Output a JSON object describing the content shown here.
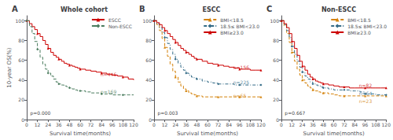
{
  "chart_data": [
    {
      "type": "step",
      "title": "Whole cohort",
      "panel_label": "A",
      "xlabel": "Survival time(months)",
      "ylabel": "10-year OS(%)",
      "x": [
        0,
        3,
        6,
        9,
        12,
        15,
        18,
        21,
        24,
        27,
        30,
        33,
        36,
        39,
        42,
        45,
        48,
        51,
        54,
        57,
        60,
        66,
        72,
        78,
        84,
        90,
        96,
        102,
        108,
        114,
        120
      ],
      "series": [
        {
          "name": "ESCC",
          "color": "#cc0000",
          "line_style": "solid",
          "marker": "triangle",
          "values": [
            100,
            97,
            94,
            91,
            87,
            84,
            80,
            76,
            72,
            68,
            65,
            63,
            61,
            59,
            57,
            56,
            55,
            54,
            53,
            52,
            51,
            50,
            49,
            48,
            47,
            46,
            45,
            44,
            43,
            41,
            40
          ]
        },
        {
          "name": "Non-ESCC",
          "color": "#4a7c5e",
          "line_style": "dashed",
          "marker": "diamond",
          "values": [
            100,
            94,
            87,
            79,
            71,
            63,
            56,
            51,
            47,
            44,
            41,
            38,
            36,
            35,
            34,
            33,
            32,
            31,
            30,
            29,
            29,
            28,
            27,
            27,
            26,
            26,
            25,
            25,
            25,
            25,
            25
          ]
        }
      ],
      "annotations": [
        {
          "text": "n=446",
          "x": 82,
          "y": 46,
          "color": "#cc0000"
        },
        {
          "text": "n=169",
          "x": 82,
          "y": 28,
          "color": "#4a7c5e"
        },
        {
          "text": "p=0.000",
          "x": 3,
          "y": 7,
          "color": "#000000"
        }
      ],
      "xlim": [
        0,
        120
      ],
      "xticks": [
        0,
        12,
        24,
        36,
        48,
        60,
        72,
        84,
        96,
        108,
        120
      ],
      "ylim": [
        0,
        105
      ],
      "yticks": [
        0,
        20,
        40,
        60,
        80,
        100
      ],
      "grid": false,
      "legend": "upper right"
    },
    {
      "type": "step",
      "title": "ESCC",
      "panel_label": "B",
      "xlabel": "Survival time(months)",
      "x": [
        0,
        3,
        6,
        9,
        12,
        15,
        18,
        21,
        24,
        27,
        30,
        33,
        36,
        39,
        42,
        45,
        48,
        54,
        60,
        66,
        72,
        78,
        84,
        90,
        96,
        102,
        108,
        114,
        120
      ],
      "series": [
        {
          "name": "BMI<18.5",
          "color": "#d4820a",
          "line_style": "dashed",
          "marker": "triangle",
          "values": [
            100,
            96,
            90,
            82,
            73,
            64,
            56,
            49,
            43,
            38,
            34,
            31,
            29,
            27,
            26,
            25,
            24,
            23,
            23,
            23,
            23,
            23,
            23,
            23,
            23,
            23,
            23,
            23,
            23
          ]
        },
        {
          "name": "18.5≤ BMI<23.0",
          "color": "#336b87",
          "line_style": "dashdot",
          "marker": "diamond",
          "values": [
            100,
            97,
            93,
            88,
            83,
            77,
            71,
            66,
            61,
            57,
            53,
            50,
            47,
            45,
            43,
            42,
            41,
            39,
            38,
            37,
            36,
            36,
            36,
            35,
            35,
            35,
            35,
            35,
            35
          ]
        },
        {
          "name": "BMI≥23.0",
          "color": "#cc0000",
          "line_style": "solid",
          "marker": "triangle",
          "values": [
            100,
            98,
            96,
            93,
            90,
            87,
            84,
            81,
            78,
            75,
            72,
            70,
            68,
            66,
            64,
            62,
            61,
            59,
            57,
            56,
            55,
            54,
            53,
            52,
            51,
            51,
            50,
            50,
            50
          ]
        }
      ],
      "annotations": [
        {
          "text": "n=156",
          "x": 88,
          "y": 53,
          "color": "#cc0000"
        },
        {
          "text": "n=225",
          "x": 88,
          "y": 38,
          "color": "#336b87"
        },
        {
          "text": "n=65",
          "x": 88,
          "y": 24,
          "color": "#d4820a"
        },
        {
          "text": "p=0.003",
          "x": 3,
          "y": 7,
          "color": "#000000"
        }
      ],
      "xlim": [
        0,
        120
      ],
      "xticks": [
        0,
        12,
        24,
        36,
        48,
        60,
        72,
        84,
        96,
        108,
        120
      ],
      "ylim": [
        0,
        105
      ],
      "yticks": [
        0,
        20,
        40,
        60,
        80,
        100
      ],
      "grid": false,
      "legend": "upper right"
    },
    {
      "type": "step",
      "title": "Non-ESCC",
      "panel_label": "C",
      "xlabel": "Survival time(months)",
      "x": [
        0,
        3,
        6,
        9,
        12,
        15,
        18,
        21,
        24,
        27,
        30,
        33,
        36,
        39,
        42,
        45,
        48,
        54,
        60,
        66,
        72,
        78,
        84,
        90,
        96,
        102,
        108,
        114,
        120
      ],
      "series": [
        {
          "name": "BMI<18.5",
          "color": "#d4820a",
          "line_style": "dashed",
          "marker": "triangle",
          "values": [
            100,
            95,
            87,
            78,
            68,
            59,
            51,
            45,
            40,
            37,
            34,
            32,
            30,
            29,
            28,
            27,
            27,
            26,
            25,
            24,
            24,
            24,
            24,
            24,
            24,
            24,
            24,
            24,
            24
          ]
        },
        {
          "name": "18.5≤ BMI<23.0",
          "color": "#336b87",
          "line_style": "dashdot",
          "marker": "diamond",
          "values": [
            100,
            96,
            90,
            83,
            74,
            66,
            59,
            53,
            48,
            44,
            41,
            38,
            36,
            35,
            34,
            33,
            32,
            31,
            30,
            30,
            30,
            29,
            29,
            28,
            26,
            26,
            25,
            25,
            25
          ]
        },
        {
          "name": "BMI≥23.0",
          "color": "#cc0000",
          "line_style": "solid",
          "marker": "triangle",
          "values": [
            100,
            97,
            93,
            87,
            79,
            72,
            65,
            59,
            54,
            50,
            46,
            43,
            41,
            39,
            38,
            37,
            36,
            35,
            34,
            33,
            33,
            32,
            32,
            32,
            32,
            32,
            32,
            32,
            32
          ]
        }
      ],
      "annotations": [
        {
          "text": "n=82",
          "x": 88,
          "y": 35,
          "color": "#cc0000"
        },
        {
          "text": "n=64",
          "x": 88,
          "y": 27,
          "color": "#336b87"
        },
        {
          "text": "n=23",
          "x": 88,
          "y": 19,
          "color": "#d4820a"
        },
        {
          "text": "p=0.667",
          "x": 3,
          "y": 7,
          "color": "#000000"
        }
      ],
      "xlim": [
        0,
        120
      ],
      "xticks": [
        0,
        12,
        24,
        36,
        48,
        60,
        72,
        84,
        96,
        108,
        120
      ],
      "ylim": [
        0,
        105
      ],
      "yticks": [
        0,
        20,
        40,
        60,
        80,
        100
      ],
      "grid": false,
      "legend": "upper right"
    }
  ]
}
